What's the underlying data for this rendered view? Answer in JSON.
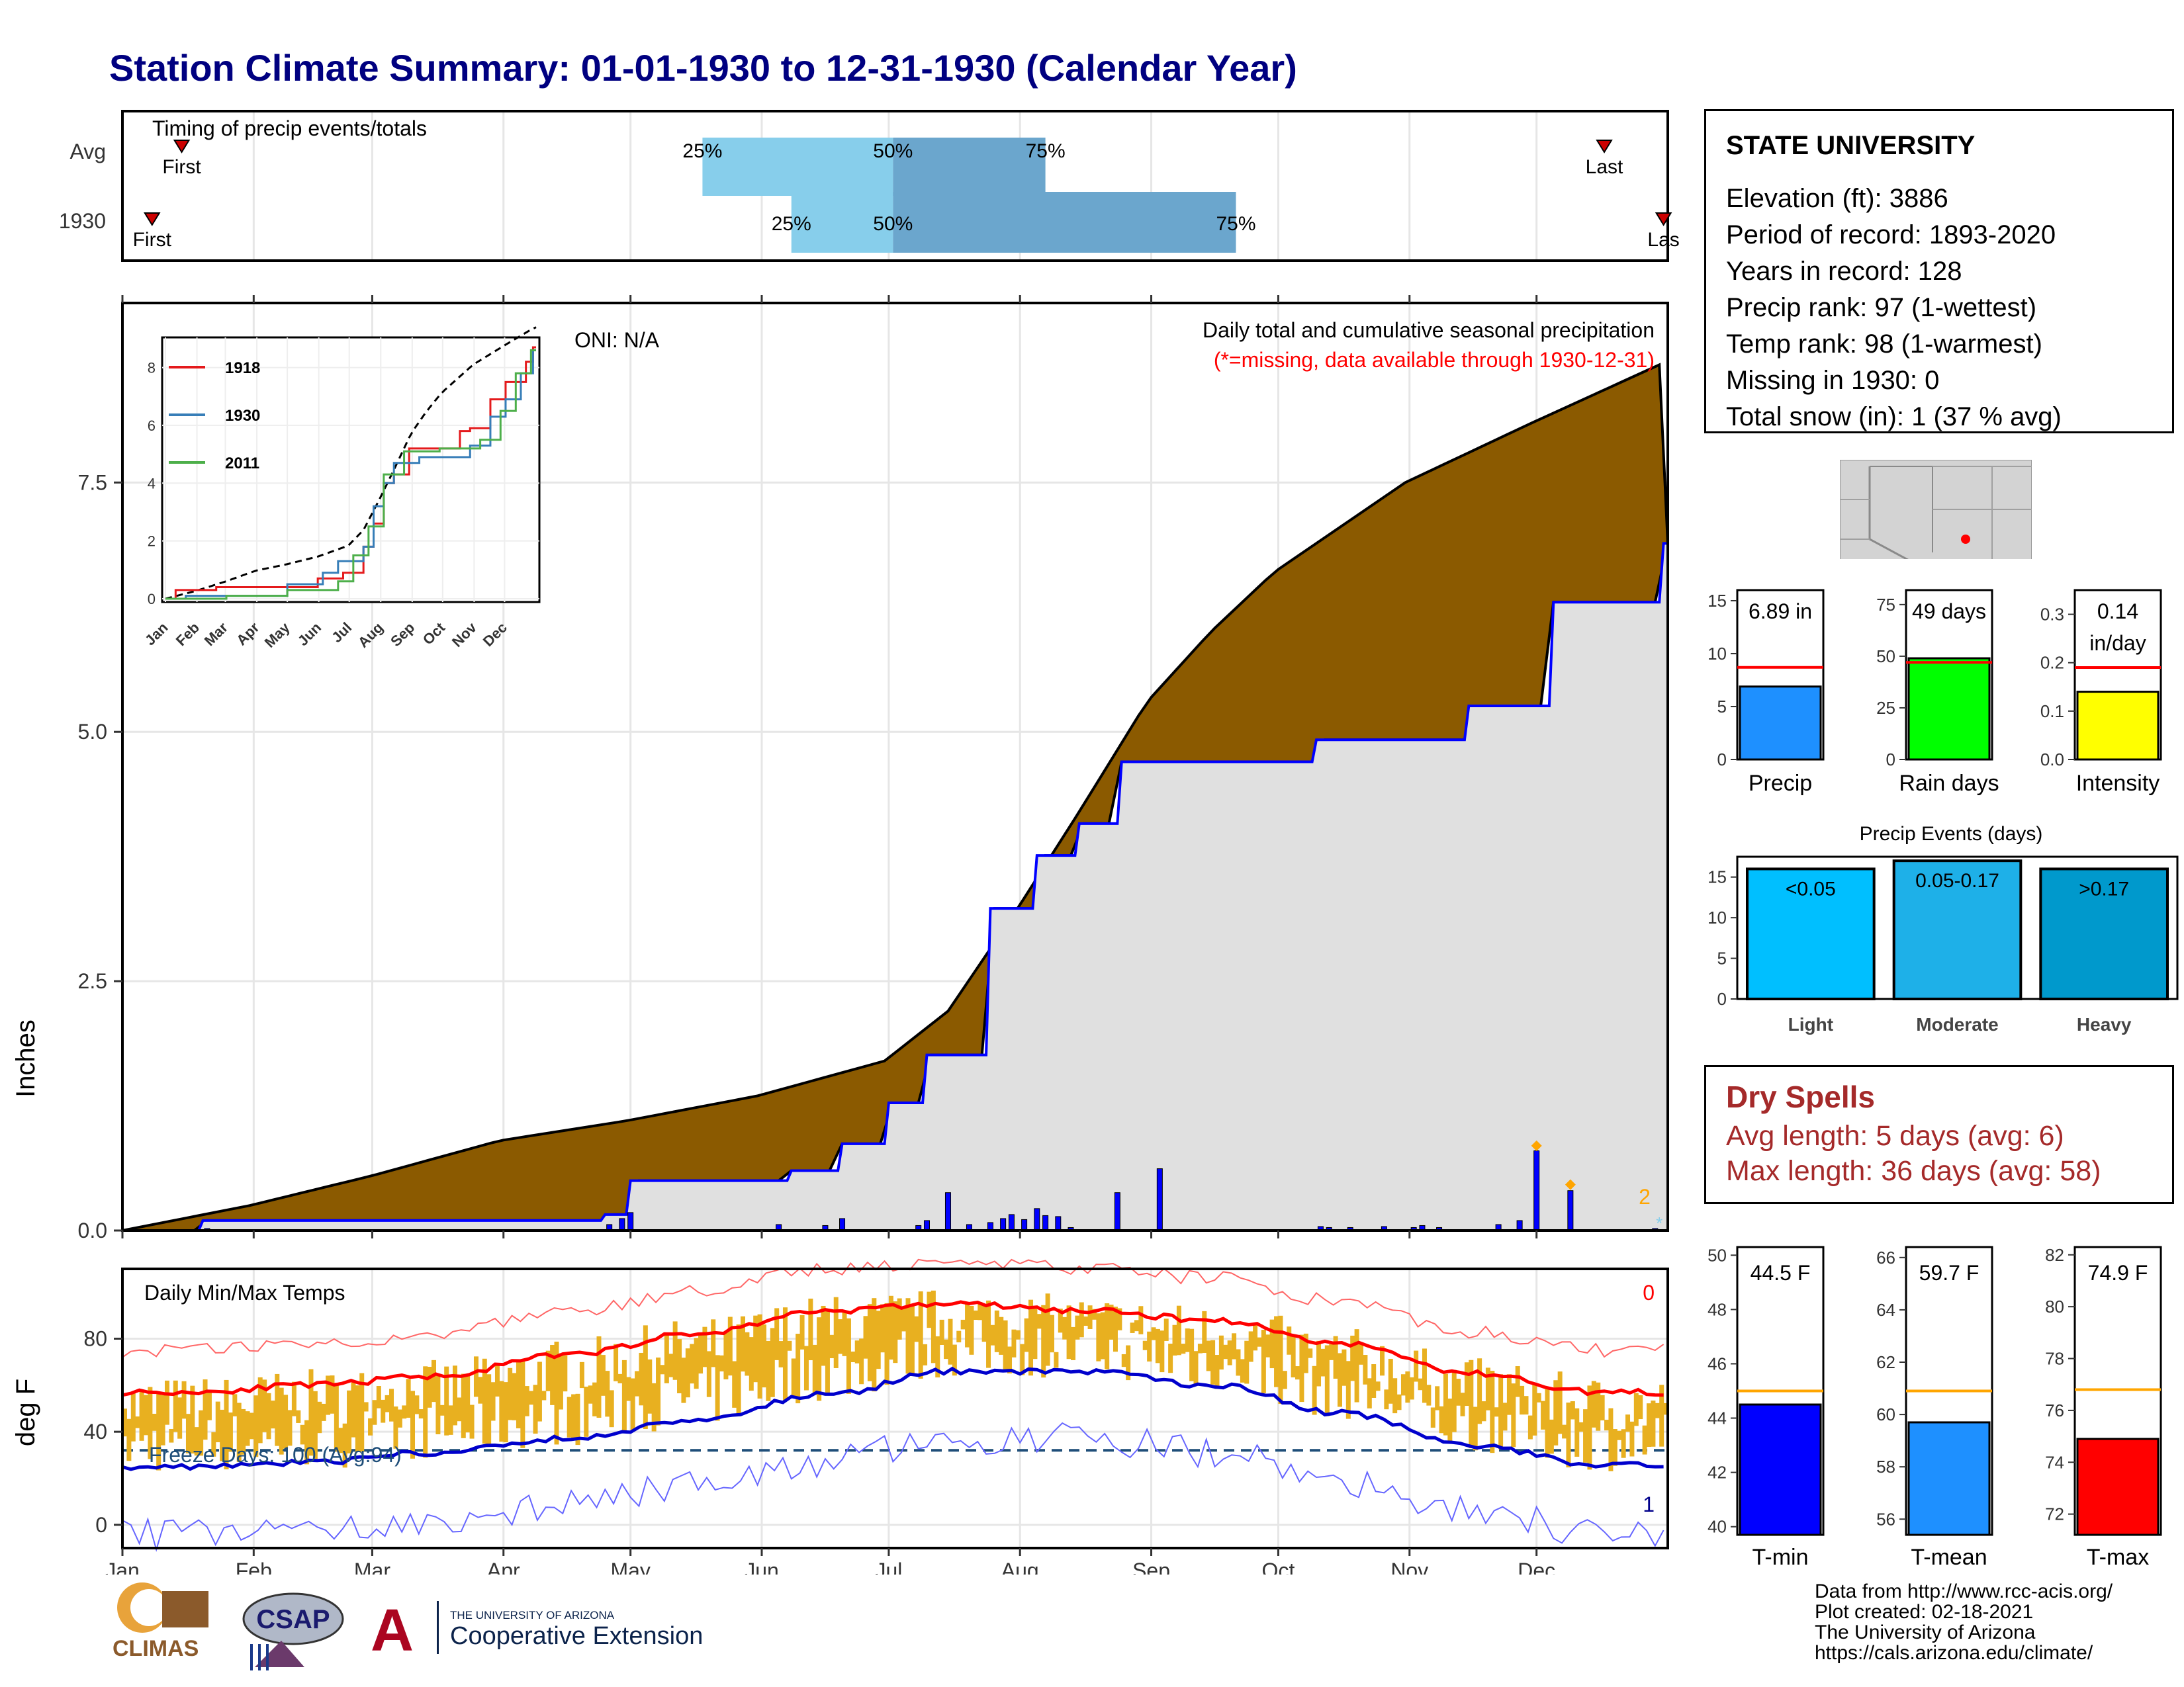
{
  "title": "Station Climate Summary: 01-01-1930 to 12-31-1930 (Calendar Year)",
  "colors": {
    "title": "#000080",
    "cumulative_fill": "#8B5A00",
    "year_fill": "#E0E0E0",
    "year_line": "#0000FF",
    "timing_light": "#87CEEB",
    "timing_dark": "#6BA6CD",
    "tmax_line": "#FF0000",
    "tmin_line": "#0000CC",
    "temp_bar": "#E8B020",
    "dry_spells": "#A52A2A"
  },
  "timing": {
    "title": "Timing of precip events/totals",
    "rows": [
      {
        "label": "Avg",
        "first_label": "First",
        "last_label": "Last",
        "p25": "25%",
        "p50": "50%",
        "p75": "75%",
        "first_doy": 14,
        "last_doy": 350,
        "p25_doy": 137,
        "p50_doy": 182,
        "p75_doy": 218
      },
      {
        "label": "1930",
        "first_label": "First",
        "last_label": "Las",
        "p25": "25%",
        "p50": "50%",
        "p75": "75%",
        "first_doy": 7,
        "last_doy": 364,
        "p25_doy": 158,
        "p50_doy": 182,
        "p75_doy": 263
      }
    ]
  },
  "precip_panel": {
    "caption": "Daily total and cumulative seasonal precipitation",
    "missing_note": "(*=missing, data available through 1930-12-31)",
    "oni": "ONI: N/A",
    "ylabel": "Inches",
    "yticks": [
      "0.0",
      "2.5",
      "5.0",
      "7.5"
    ],
    "annotation_count": "2"
  },
  "inset": {
    "legend": [
      {
        "name": "1918",
        "color": "#E41A1C"
      },
      {
        "name": "1930",
        "color": "#377EB8"
      },
      {
        "name": "2011",
        "color": "#4DAF4A"
      }
    ],
    "yticks": [
      "0",
      "2",
      "4",
      "6",
      "8"
    ],
    "months": [
      "Jan",
      "Feb",
      "Mar",
      "Apr",
      "May",
      "Jun",
      "Jul",
      "Aug",
      "Sep",
      "Oct",
      "Nov",
      "Dec"
    ]
  },
  "temp_panel": {
    "title": "Daily Min/Max Temps",
    "ylabel": "deg F",
    "yticks": [
      "0",
      "40",
      "80"
    ],
    "freeze_text": "Freeze Days: 100 (Avg:94)",
    "count_top": "0",
    "count_bottom": "1"
  },
  "months": [
    "Jan",
    "Feb",
    "Mar",
    "Apr",
    "May",
    "Jun",
    "Jul",
    "Aug",
    "Sep",
    "Oct",
    "Nov",
    "Dec"
  ],
  "station": {
    "name": "STATE UNIVERSITY",
    "lines": [
      "Elevation (ft): 3886",
      "Period of record: 1893-2020",
      "Years in record: 128",
      "Precip rank: 97 (1-wettest)",
      "Temp rank: 98 (1-warmest)",
      "Missing in 1930: 0",
      "Total snow (in): 1 (37 % avg)"
    ]
  },
  "small_bars": [
    {
      "xlabel": "Precip",
      "value_text": "6.89 in",
      "value": 6.89,
      "avg": 8.7,
      "ymax": 16,
      "yticks": [
        "0",
        "5",
        "10",
        "15"
      ],
      "tickvals": [
        0,
        5,
        10,
        15
      ],
      "color": "#1E90FF"
    },
    {
      "xlabel": "Rain days",
      "value_text": "49 days",
      "value": 49,
      "avg": 47,
      "ymax": 82,
      "yticks": [
        "0",
        "25",
        "50",
        "75"
      ],
      "tickvals": [
        0,
        25,
        50,
        75
      ],
      "color": "#00FF00"
    },
    {
      "xlabel": "Intensity",
      "value_text": "0.14",
      "value_text2": "in/day",
      "value": 0.14,
      "avg": 0.19,
      "ymax": 0.35,
      "yticks": [
        "0.0",
        "0.1",
        "0.2",
        "0.3"
      ],
      "tickvals": [
        0,
        0.1,
        0.2,
        0.3
      ],
      "color": "#FFFF00"
    }
  ],
  "precip_events": {
    "title": "Precip Events (days)",
    "yticks": [
      "0",
      "5",
      "10",
      "15"
    ],
    "categories": [
      "Light",
      "Moderate",
      "Heavy"
    ],
    "labels": [
      "<0.05",
      "0.05-0.17",
      ">0.17"
    ],
    "values": [
      16,
      17,
      16
    ],
    "colors": [
      "#00BFFF",
      "#1EB0E8",
      "#0099CC"
    ]
  },
  "dry_spells": {
    "title": "Dry Spells",
    "avg": "Avg length: 5 days (avg: 6)",
    "max": "Max length: 36 days (avg: 58)"
  },
  "temp_bars": [
    {
      "xlabel": "T-min",
      "value_text": "44.5 F",
      "value": 44.5,
      "avg": 45.0,
      "ymin": 39.7,
      "ymax": 50.3,
      "yticks": [
        "40",
        "42",
        "44",
        "46",
        "48",
        "50"
      ],
      "tickvals": [
        40,
        42,
        44,
        46,
        48,
        50
      ],
      "color": "#0000FF"
    },
    {
      "xlabel": "T-mean",
      "value_text": "59.7 F",
      "value": 59.7,
      "avg": 60.9,
      "ymin": 55.4,
      "ymax": 66.4,
      "yticks": [
        "56",
        "58",
        "60",
        "62",
        "64",
        "66"
      ],
      "tickvals": [
        56,
        58,
        60,
        62,
        64,
        66
      ],
      "color": "#1E90FF"
    },
    {
      "xlabel": "T-max",
      "value_text": "74.9 F",
      "value": 74.9,
      "avg": 76.8,
      "ymin": 71.2,
      "ymax": 82.3,
      "yticks": [
        "72",
        "74",
        "76",
        "78",
        "80",
        "82"
      ],
      "tickvals": [
        72,
        74,
        76,
        78,
        80,
        82
      ],
      "color": "#FF0000"
    }
  ],
  "logos": {
    "climas": "CLIMAS",
    "csap": "CSAP",
    "ua_line1": "THE UNIVERSITY OF ARIZONA",
    "ua_line2": "Cooperative Extension"
  },
  "footer": [
    "Data from http://www.rcc-acis.org/",
    "Plot created: 02-18-2021",
    "The University of Arizona",
    "https://cals.arizona.edu/climate/"
  ],
  "chart_data": [
    {
      "type": "area",
      "title": "Daily total and cumulative seasonal precipitation",
      "ylabel": "Inches",
      "ylim": [
        0,
        9.3
      ],
      "series": [
        {
          "name": "",
          "x": [
            "01-01",
            "01-31",
            "03-01",
            "03-31",
            "04-30",
            "05-31",
            "06-30",
            "07-15",
            "07-31",
            "08-15",
            "08-31",
            "09-15",
            "09-30",
            "10-31",
            "11-30",
            "12-31"
          ],
          "values": [
            0.0,
            0.25,
            0.55,
            0.9,
            1.1,
            1.35,
            1.7,
            2.2,
            3.2,
            4.2,
            5.3,
            6.0,
            6.6,
            7.5,
            8.1,
            8.7
          ]
        },
        {
          "name": "1930",
          "x": [
            "01-01",
            "01-20",
            "04-25",
            "05-01",
            "06-08",
            "06-20",
            "07-01",
            "07-10",
            "07-25",
            "08-05",
            "08-15",
            "08-25",
            "10-10",
            "11-15",
            "12-05",
            "12-31"
          ],
          "values": [
            0.0,
            0.1,
            0.16,
            0.5,
            0.6,
            0.87,
            1.28,
            1.76,
            3.23,
            3.76,
            4.08,
            4.7,
            4.92,
            5.26,
            6.3,
            6.89
          ]
        }
      ]
    },
    {
      "type": "line",
      "title": "Daily Min/Max Temps",
      "ylabel": "deg F",
      "x": [
        "Jan",
        "Feb",
        "Mar",
        "Apr",
        "May",
        "Jun",
        "Jul",
        "Aug",
        "Sep",
        "Oct",
        "Nov",
        "Dec"
      ],
      "series": [
        {
          "name": "",
          "values": [
            57,
            60,
            64,
            73,
            82,
            92,
            95,
            92,
            88,
            78,
            65,
            57
          ]
        },
        {
          "name": "",
          "values": [
            25,
            27,
            31,
            37,
            45,
            56,
            66,
            66,
            60,
            48,
            34,
            26
          ]
        }
      ],
      "ylim": [
        -10,
        110
      ]
    },
    {
      "type": "bar",
      "title": "Precip Events (days)",
      "categories": [
        "Light",
        "Moderate",
        "Heavy"
      ],
      "values": [
        16,
        17,
        16
      ]
    }
  ]
}
